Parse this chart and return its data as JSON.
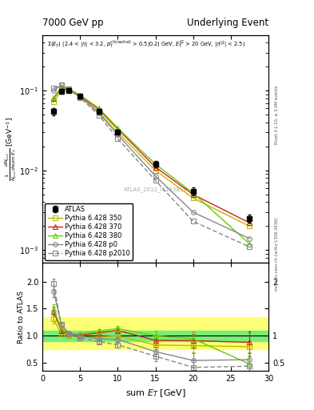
{
  "title_left": "7000 GeV pp",
  "title_right": "Underlying Event",
  "ylabel_main": "$\\frac{1}{N_{evt}}\\frac{dN_{evt}}{d\\mathrm{sum}\\ E_T}$ [GeV$^{-1}$]",
  "ylabel_ratio": "Ratio to ATLAS",
  "xlabel": "sum $E_T$ [GeV]",
  "annotation": "$\\Sigma(E_T)$ (2.4 < |$\\eta$| < 3.2, $p_T^{ch(neutral)}$ > 0.5(0.2) GeV, $E_T^{lj2}$ > 20 GeV, $|\\eta^{lj2}|$ < 2.5)",
  "rivet_label": "Rivet 3.1.10, ≥ 3.4M events",
  "mcplots_label": "mcplots.cern.ch [arXiv:1306.3436]",
  "atlas_id": "ATLAS_2012_I1183818",
  "x_atlas": [
    1.5,
    2.5,
    3.5,
    5.0,
    7.5,
    10.0,
    15.0,
    20.0,
    27.5
  ],
  "y_atlas": [
    0.055,
    0.097,
    0.101,
    0.085,
    0.055,
    0.03,
    0.012,
    0.0055,
    0.0025
  ],
  "y_atlas_err": [
    0.006,
    0.005,
    0.005,
    0.005,
    0.004,
    0.002,
    0.001,
    0.0006,
    0.0003
  ],
  "x_350": [
    1.5,
    2.5,
    3.5,
    5.0,
    7.5,
    10.0,
    15.0,
    20.0,
    27.5
  ],
  "y_350": [
    0.072,
    0.1,
    0.101,
    0.083,
    0.054,
    0.03,
    0.01,
    0.0045,
    0.002
  ],
  "x_370": [
    1.5,
    2.5,
    3.5,
    5.0,
    7.5,
    10.0,
    15.0,
    20.0,
    27.5
  ],
  "y_370": [
    0.08,
    0.107,
    0.104,
    0.086,
    0.058,
    0.033,
    0.011,
    0.005,
    0.0022
  ],
  "x_380": [
    1.5,
    2.5,
    3.5,
    5.0,
    7.5,
    10.0,
    15.0,
    20.0,
    27.5
  ],
  "y_380": [
    0.082,
    0.109,
    0.105,
    0.088,
    0.06,
    0.034,
    0.012,
    0.0052,
    0.0012
  ],
  "x_p0": [
    1.5,
    2.5,
    3.5,
    5.0,
    7.5,
    10.0,
    15.0,
    20.0,
    27.5
  ],
  "y_p0": [
    0.1,
    0.117,
    0.106,
    0.085,
    0.052,
    0.028,
    0.0085,
    0.003,
    0.0014
  ],
  "x_p2010": [
    1.5,
    2.5,
    3.5,
    5.0,
    7.5,
    10.0,
    15.0,
    20.0,
    27.5
  ],
  "y_p2010": [
    0.108,
    0.117,
    0.104,
    0.082,
    0.049,
    0.025,
    0.0075,
    0.0023,
    0.0011
  ],
  "color_350": "#bbbb00",
  "color_370": "#cc2222",
  "color_380": "#66cc00",
  "color_p0": "#888888",
  "color_p2010": "#888888",
  "ratio_x": [
    1.5,
    2.5,
    3.5,
    5.0,
    7.5,
    10.0,
    15.0,
    20.0,
    27.5
  ],
  "ratio_350_y": [
    1.31,
    1.03,
    1.0,
    0.975,
    0.98,
    1.0,
    0.83,
    0.82,
    0.8
  ],
  "ratio_370_y": [
    1.45,
    1.1,
    1.03,
    1.01,
    1.055,
    1.1,
    0.917,
    0.91,
    0.88
  ],
  "ratio_380_y": [
    1.49,
    1.124,
    1.04,
    1.035,
    1.09,
    1.133,
    1.0,
    0.945,
    0.48
  ],
  "ratio_p0_y": [
    1.82,
    1.206,
    1.05,
    1.0,
    0.945,
    0.933,
    0.708,
    0.545,
    0.56
  ],
  "ratio_p2010_y": [
    1.96,
    1.206,
    1.03,
    0.965,
    0.891,
    0.833,
    0.625,
    0.418,
    0.44
  ],
  "ratio_350_err": [
    0.08,
    0.04,
    0.03,
    0.03,
    0.04,
    0.05,
    0.08,
    0.12,
    0.18
  ],
  "ratio_370_err": [
    0.09,
    0.04,
    0.03,
    0.03,
    0.04,
    0.05,
    0.09,
    0.13,
    0.2
  ],
  "ratio_380_err": [
    0.09,
    0.04,
    0.03,
    0.03,
    0.04,
    0.05,
    0.09,
    0.13,
    0.22
  ],
  "ratio_p0_err": [
    0.1,
    0.04,
    0.03,
    0.03,
    0.04,
    0.05,
    0.09,
    0.13,
    0.2
  ],
  "ratio_p2010_err": [
    0.1,
    0.04,
    0.03,
    0.03,
    0.04,
    0.05,
    0.09,
    0.13,
    0.2
  ],
  "band_yellow_lo": 0.75,
  "band_yellow_hi": 1.35,
  "band_green_lo": 0.9,
  "band_green_hi": 1.1,
  "xlim_main": [
    0,
    30
  ],
  "ylim_main_log": [
    0.0007,
    0.5
  ],
  "xlim_ratio": [
    0,
    30
  ],
  "ylim_ratio": [
    0.35,
    2.35
  ]
}
